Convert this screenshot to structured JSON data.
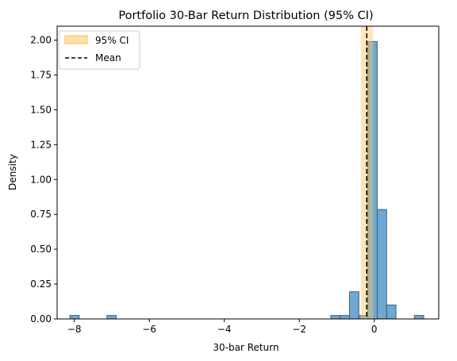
{
  "chart_data": {
    "type": "bar",
    "title": "Portfolio 30-Bar Return Distribution (95% CI)",
    "xlabel": "30-bar Return",
    "ylabel": "Density",
    "xlim": [
      -8.46,
      1.72
    ],
    "ylim": [
      0,
      2.1
    ],
    "xticks": [
      -8,
      -6,
      -4,
      -2,
      0
    ],
    "xtick_labels": [
      "−8",
      "−6",
      "−4",
      "−2",
      "0"
    ],
    "yticks": [
      0,
      0.25,
      0.5,
      0.75,
      1.0,
      1.25,
      1.5,
      1.75,
      2.0
    ],
    "ytick_labels": [
      "0.00",
      "0.25",
      "0.50",
      "0.75",
      "1.00",
      "1.25",
      "1.50",
      "1.75",
      "2.00"
    ],
    "bin_width": 0.2485,
    "bins": [
      {
        "left": -8.12,
        "density": 0.025
      },
      {
        "left": -7.13,
        "density": 0.025
      },
      {
        "left": -1.16,
        "density": 0.025
      },
      {
        "left": -0.91,
        "density": 0.025
      },
      {
        "left": -0.66,
        "density": 0.195
      },
      {
        "left": -0.41,
        "density": 0.025
      },
      {
        "left": -0.17,
        "density": 1.99
      },
      {
        "left": 0.08,
        "density": 0.785
      },
      {
        "left": 0.33,
        "density": 0.1
      },
      {
        "left": 1.07,
        "density": 0.025
      }
    ],
    "bar_color": "#6fa8d0",
    "bar_edge": "#3b5f7f",
    "ci": {
      "low": -0.36,
      "high": -0.03,
      "color": "#ffc865",
      "label": "95% CI"
    },
    "mean": {
      "x": -0.2,
      "label": "Mean"
    },
    "legend_position": "top-left"
  }
}
